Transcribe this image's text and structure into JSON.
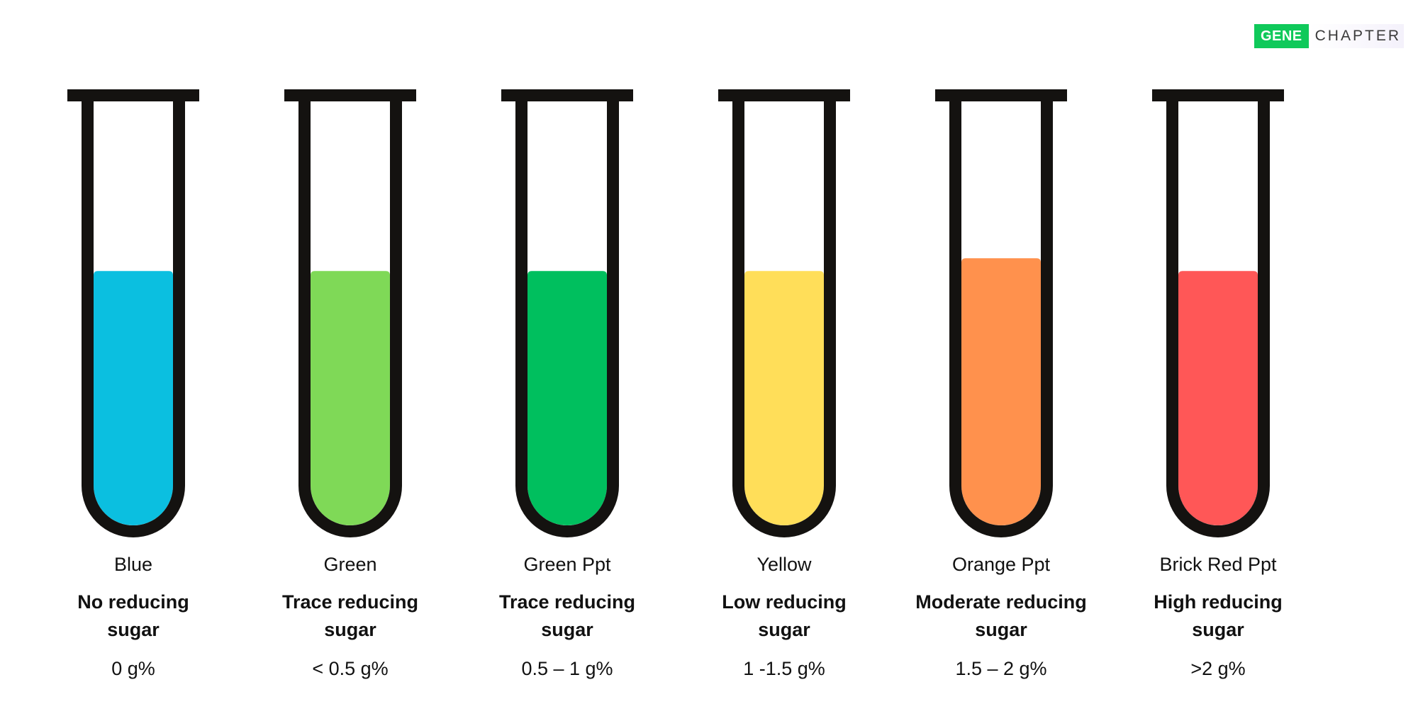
{
  "logo": {
    "gene": "GENE",
    "chapter": "CHAPTER",
    "brand_color": "#0fc95a"
  },
  "tubes": [
    {
      "color_name": "Blue",
      "meaning_line1": "No reducing",
      "meaning_line2": "sugar",
      "amount": "0 g%",
      "liquid_color": "#0bbfe0",
      "fill_level": 0.6
    },
    {
      "color_name": "Green",
      "meaning_line1": "Trace reducing",
      "meaning_line2": "sugar",
      "amount": "< 0.5 g%",
      "liquid_color": "#7fd957",
      "fill_level": 0.6
    },
    {
      "color_name": "Green Ppt",
      "meaning_line1": "Trace reducing",
      "meaning_line2": "sugar",
      "amount": "0.5 – 1 g%",
      "liquid_color": "#00bf5e",
      "fill_level": 0.6
    },
    {
      "color_name": "Yellow",
      "meaning_line1": "Low reducing",
      "meaning_line2": "sugar",
      "amount": "1 -1.5 g%",
      "liquid_color": "#ffde59",
      "fill_level": 0.6
    },
    {
      "color_name": "Orange Ppt",
      "meaning_line1": "Moderate reducing",
      "meaning_line2": "sugar",
      "amount": "1.5 – 2 g%",
      "liquid_color": "#ff914d",
      "fill_level": 0.63
    },
    {
      "color_name": "Brick Red Ppt",
      "meaning_line1": "High reducing",
      "meaning_line2": "sugar",
      "amount": ">2 g%",
      "liquid_color": "#ff5757",
      "fill_level": 0.6
    }
  ]
}
